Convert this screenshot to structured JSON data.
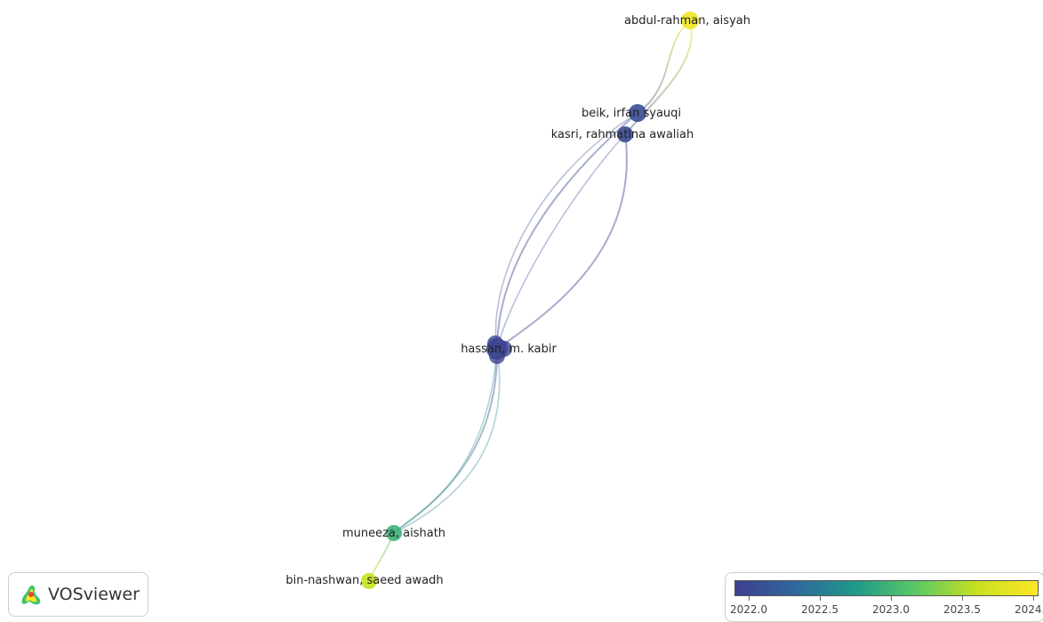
{
  "network": {
    "nodes": [
      {
        "id": "abdul",
        "label": "abdul-rahman, aisyah",
        "year": 2023.9
      },
      {
        "id": "beik",
        "label": "beik, irfan syauqi",
        "year": 2022.15
      },
      {
        "id": "kasri",
        "label": "kasri, rahmatina awaliah",
        "year": 2022.1
      },
      {
        "id": "hassan",
        "label": "hassan, m. kabir",
        "year": 2022.05
      },
      {
        "id": "muneeza",
        "label": "muneeza, aishath",
        "year": 2023.0
      },
      {
        "id": "binnashwan",
        "label": "bin-nashwan, saeed awadh",
        "year": 2023.6
      }
    ],
    "links": [
      [
        "abdul",
        "beik"
      ],
      [
        "abdul",
        "kasri"
      ],
      [
        "beik",
        "hassan"
      ],
      [
        "kasri",
        "hassan"
      ],
      [
        "hassan",
        "muneeza"
      ],
      [
        "muneeza",
        "binnashwan"
      ]
    ]
  },
  "logo": {
    "text": "VOSviewer"
  },
  "legend": {
    "min": 2022.0,
    "max": 2024.0,
    "ticks": [
      "2022.0",
      "2022.5",
      "2023.0",
      "2023.5",
      "2024.0"
    ],
    "colors": [
      "#3e3f8e",
      "#30689c",
      "#1f9a8a",
      "#5cc863",
      "#c8e020",
      "#fde725"
    ]
  }
}
